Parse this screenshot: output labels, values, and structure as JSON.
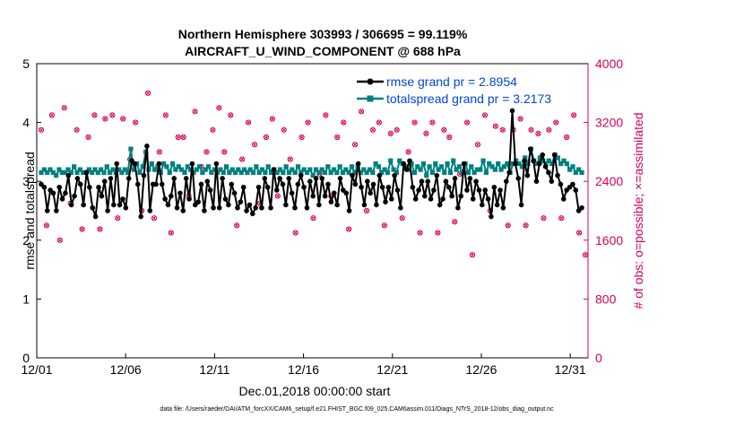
{
  "chart_data": {
    "type": "line",
    "title_line1": "Northern Hemisphere 303993 / 306695 = 99.119%",
    "title_line2": "AIRCRAFT_U_WIND_COMPONENT @ 688 hPa",
    "xlabel": "Dec.01,2018 00:00:00 start",
    "ylabel_left": "rmse and totalspread",
    "ylabel_right": "# of obs: o=possible; ×=assimilated",
    "footnote": "data file: /Users/raeder/DAI/ATM_forcXX/CAM6_setup/f.e21.FHIST_BGC.f09_025.CAM6assim.011/Diags_NTrS_2018-12/obs_diag_output.nc",
    "x_ticks": [
      "12/01",
      "12/06",
      "12/11",
      "12/16",
      "12/21",
      "12/26",
      "12/31"
    ],
    "x_tick_days": [
      1,
      6,
      11,
      16,
      21,
      26,
      31
    ],
    "xlim_days": [
      1,
      32
    ],
    "left_ticks": [
      "0",
      "1",
      "2",
      "3",
      "4",
      "5"
    ],
    "left_ylim": [
      0,
      5
    ],
    "right_ticks": [
      "0",
      "800",
      "1600",
      "2400",
      "3200",
      "4000"
    ],
    "right_ylim": [
      0,
      4000
    ],
    "colors": {
      "rmse": "#000000",
      "spread": "#00807f",
      "obs": "#d6005a",
      "legend_text": "#0047d6"
    },
    "legend": [
      {
        "name": "rmse grand pr = 2.8954"
      },
      {
        "name": "totalspread grand pr = 3.2173"
      }
    ],
    "series_rmse": [
      2.95,
      2.9,
      2.5,
      2.85,
      2.8,
      2.5,
      2.9,
      2.7,
      2.8,
      3.1,
      2.6,
      2.75,
      3.05,
      2.95,
      2.6,
      3.15,
      2.9,
      2.55,
      2.4,
      2.9,
      2.75,
      3.0,
      2.5,
      3.05,
      2.6,
      3.3,
      2.6,
      2.7,
      2.55,
      3.05,
      3.35,
      3.3,
      2.95,
      2.4,
      3.1,
      3.6,
      2.5,
      2.95,
      2.95,
      3.3,
      2.95,
      2.7,
      2.6,
      2.75,
      3.05,
      2.55,
      2.8,
      2.5,
      3.05,
      2.7,
      3.3,
      2.6,
      2.65,
      2.95,
      2.5,
      3.0,
      2.85,
      2.55,
      3.3,
      2.55,
      3.05,
      2.7,
      2.6,
      2.95,
      2.8,
      2.55,
      2.65,
      2.9,
      2.5,
      2.6,
      2.45,
      2.55,
      2.9,
      2.55,
      3.05,
      2.9,
      2.55,
      3.2,
      2.85,
      3.05,
      2.95,
      2.6,
      3.05,
      2.8,
      2.55,
      2.95,
      3.1,
      2.9,
      2.55,
      3.0,
      2.75,
      3.05,
      2.6,
      3.05,
      2.75,
      2.95,
      2.65,
      2.8,
      2.6,
      3.05,
      2.85,
      2.8,
      2.5,
      3.1,
      2.95,
      3.3,
      2.9,
      2.6,
      3.0,
      2.8,
      2.95,
      2.6,
      3.1,
      2.9,
      2.65,
      2.9,
      2.7,
      3.1,
      2.85,
      2.55,
      3.3,
      3.2,
      3.35,
      2.9,
      2.7,
      2.85,
      3.0,
      2.75,
      3.0,
      2.7,
      2.85,
      3.1,
      2.6,
      2.7,
      3.0,
      2.9,
      2.75,
      3.05,
      2.55,
      2.75,
      3.3,
      2.85,
      3.05,
      2.7,
      3.0,
      2.85,
      2.6,
      2.85,
      2.7,
      2.4,
      2.9,
      2.6,
      2.85,
      2.55,
      3.0,
      3.15,
      4.2,
      3.3,
      3.05,
      2.6,
      3.35,
      3.1,
      3.55,
      3.35,
      3.0,
      3.3,
      3.45,
      3.25,
      3.15,
      3.0,
      3.45,
      3.1,
      2.95,
      2.7,
      2.85,
      2.9,
      2.95,
      2.85,
      2.5,
      2.55
    ],
    "series_spread": [
      3.15,
      3.2,
      3.15,
      3.2,
      3.15,
      3.1,
      3.2,
      3.15,
      3.15,
      3.2,
      3.15,
      3.25,
      3.15,
      3.2,
      3.15,
      3.15,
      3.2,
      3.15,
      3.2,
      3.15,
      3.2,
      3.15,
      3.25,
      3.15,
      3.2,
      3.15,
      3.2,
      3.15,
      3.2,
      3.15,
      3.55,
      3.2,
      3.3,
      3.15,
      3.25,
      3.5,
      3.2,
      3.3,
      3.2,
      3.25,
      3.15,
      3.3,
      3.25,
      3.15,
      3.3,
      3.2,
      3.25,
      3.2,
      3.15,
      3.25,
      3.2,
      3.15,
      3.2,
      3.25,
      3.15,
      3.2,
      3.25,
      3.15,
      3.2,
      3.15,
      3.2,
      3.15,
      3.25,
      3.15,
      3.2,
      3.15,
      3.2,
      3.15,
      3.2,
      3.15,
      3.2,
      3.15,
      3.25,
      3.15,
      3.2,
      3.15,
      3.25,
      3.15,
      3.2,
      3.15,
      3.2,
      3.15,
      3.25,
      3.15,
      3.2,
      3.15,
      3.25,
      3.15,
      3.2,
      3.15,
      3.2,
      3.1,
      3.2,
      3.15,
      3.2,
      3.15,
      3.25,
      3.15,
      3.2,
      3.15,
      3.25,
      3.15,
      3.2,
      3.15,
      3.25,
      3.15,
      3.25,
      3.15,
      3.2,
      3.15,
      3.2,
      3.15,
      3.3,
      3.25,
      3.15,
      3.2,
      3.15,
      3.35,
      3.2,
      3.15,
      3.35,
      3.3,
      3.25,
      3.2,
      3.3,
      3.15,
      3.25,
      3.2,
      3.3,
      3.1,
      3.25,
      3.15,
      3.3,
      3.2,
      3.25,
      3.15,
      3.3,
      3.15,
      3.35,
      3.2,
      3.25,
      3.15,
      3.3,
      3.15,
      3.25,
      3.15,
      3.2,
      3.2,
      3.35,
      3.15,
      3.3,
      3.25,
      3.2,
      3.3,
      3.2,
      3.25,
      3.3,
      3.15,
      3.3,
      3.35,
      3.3,
      3.25,
      3.4,
      3.3,
      3.55,
      3.35,
      3.3,
      3.4,
      3.35,
      3.3,
      3.35,
      3.3,
      3.45,
      3.4,
      3.3,
      3.35,
      3.3,
      3.2,
      3.25,
      3.15,
      3.2,
      3.15
    ],
    "obs_days": [
      1.25,
      1.55,
      1.85,
      2.3,
      2.55,
      2.9,
      3.25,
      3.55,
      3.9,
      4.25,
      4.55,
      4.85,
      5.25,
      5.55,
      5.85,
      6.25,
      6.55,
      6.9,
      7.25,
      7.6,
      7.9,
      8.25,
      8.55,
      8.95,
      9.25,
      9.55,
      9.9,
      10.25,
      10.55,
      10.9,
      11.25,
      11.55,
      11.9,
      12.25,
      12.55,
      12.9,
      13.25,
      13.55,
      13.9,
      14.25,
      14.55,
      14.9,
      15.25,
      15.55,
      15.9,
      16.25,
      16.55,
      16.9,
      17.25,
      17.55,
      17.9,
      18.25,
      18.55,
      18.9,
      19.25,
      19.55,
      19.9,
      20.25,
      20.55,
      20.9,
      21.25,
      21.55,
      21.9,
      22.25,
      22.55,
      22.9,
      23.25,
      23.55,
      23.9,
      24.2,
      24.5,
      24.8,
      25.2,
      25.5,
      25.8,
      26.2,
      26.5,
      26.8,
      27.2,
      27.5,
      27.8,
      28.2,
      28.5,
      28.8,
      29.2,
      29.5,
      29.8,
      30.2,
      30.5,
      30.8,
      31.2,
      31.5,
      31.85
    ],
    "obs_counts": [
      3100,
      1800,
      3300,
      1600,
      3400,
      2100,
      3100,
      1750,
      3000,
      3300,
      1750,
      3250,
      3300,
      1900,
      3250,
      2700,
      3200,
      2000,
      3600,
      1900,
      2800,
      3300,
      1700,
      3000,
      3000,
      2200,
      3350,
      2600,
      2800,
      3100,
      3400,
      2800,
      3300,
      1800,
      2700,
      3200,
      2900,
      2100,
      3000,
      3250,
      2200,
      3100,
      2700,
      1700,
      3000,
      3200,
      1900,
      2500,
      3300,
      2200,
      3000,
      3200,
      1750,
      2900,
      3350,
      2000,
      3100,
      3200,
      1800,
      3050,
      3100,
      1900,
      2800,
      3200,
      1700,
      3050,
      3200,
      1700,
      3100,
      3000,
      1850,
      2500,
      3200,
      1400,
      2900,
      3300,
      2000,
      3150,
      3100,
      1800,
      3100,
      3250,
      1800,
      3100,
      3050,
      1900,
      3100,
      3200,
      1900,
      3000,
      3300,
      1700,
      1400
    ]
  }
}
